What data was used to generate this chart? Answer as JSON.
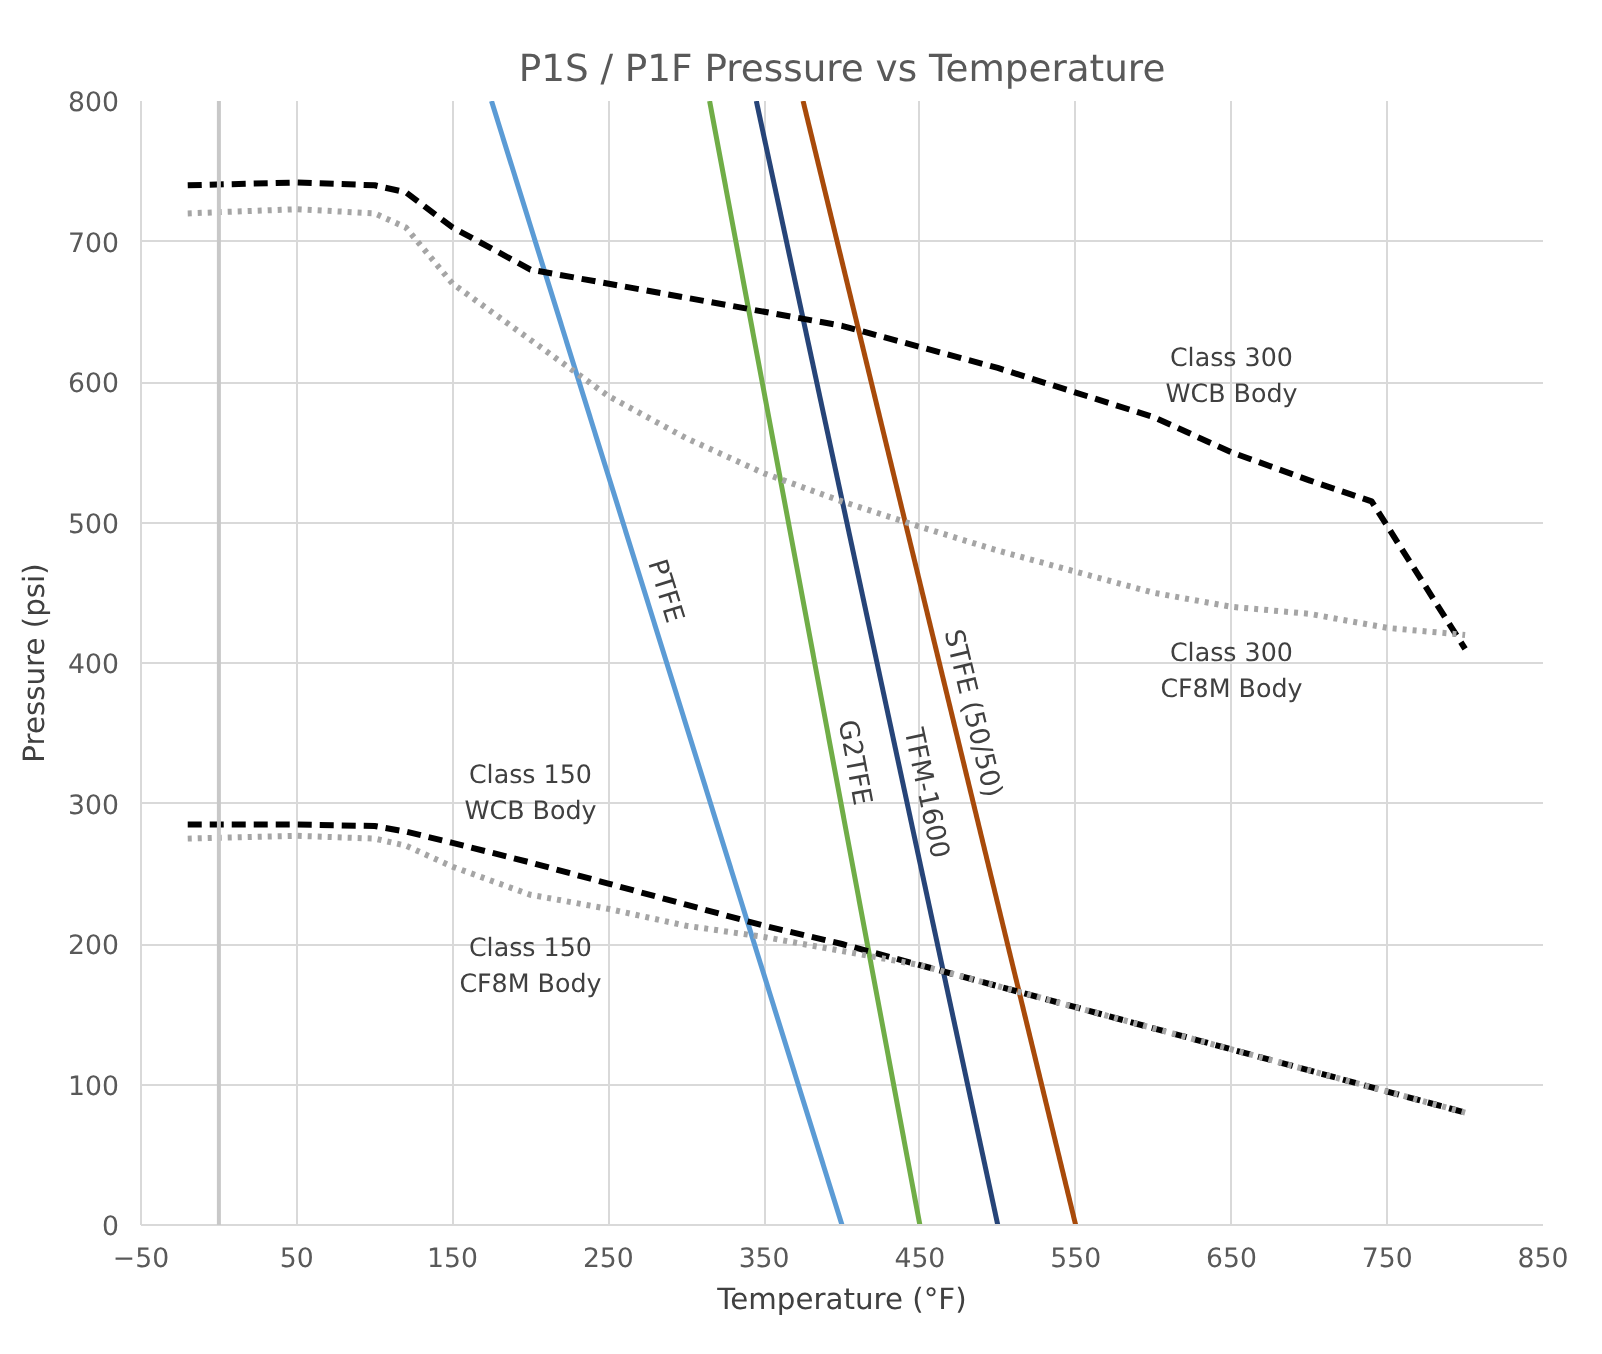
{
  "chart_data": {
    "type": "line",
    "title": "P1S / P1F Pressure vs Temperature",
    "xlabel": "Temperature (°F)",
    "ylabel": "Pressure (psi)",
    "xlim": [
      -50,
      850
    ],
    "xticks": [
      -50,
      50,
      150,
      250,
      350,
      450,
      550,
      650,
      750,
      850
    ],
    "ylim": [
      0,
      800
    ],
    "yticks": [
      0,
      100,
      200,
      300,
      400,
      500,
      600,
      700,
      800
    ],
    "grid": true,
    "ref_lines": [
      {
        "axis": "x",
        "value": 0,
        "color": "#c8c8c8"
      }
    ],
    "series": [
      {
        "name": "PTFE",
        "color": "#5b9bd5",
        "line_style": "solid",
        "x": [
          400,
          175
        ],
        "values": [
          0,
          800
        ]
      },
      {
        "name": "G2TFE",
        "color": "#70ad47",
        "line_style": "solid",
        "x": [
          450,
          315
        ],
        "values": [
          0,
          800
        ]
      },
      {
        "name": "TFM-1600",
        "color": "#264478",
        "line_style": "solid",
        "x": [
          500,
          345
        ],
        "values": [
          0,
          800
        ]
      },
      {
        "name": "STFE (50/50)",
        "color": "#a84a0a",
        "line_style": "solid",
        "x": [
          550,
          375
        ],
        "values": [
          0,
          800
        ]
      },
      {
        "name": "Class 300\nWCB Body",
        "color": "#000000",
        "line_style": "dashed",
        "x": [
          -20,
          50,
          100,
          120,
          150,
          200,
          300,
          400,
          500,
          600,
          650,
          700,
          740,
          800
        ],
        "values": [
          740,
          742,
          740,
          735,
          710,
          680,
          660,
          640,
          610,
          575,
          550,
          530,
          515,
          410
        ]
      },
      {
        "name": "Class 300\nCF8M Body",
        "color": "#a5a5a5",
        "line_style": "dotted",
        "x": [
          -20,
          50,
          100,
          120,
          150,
          200,
          250,
          300,
          350,
          400,
          450,
          500,
          550,
          600,
          650,
          700,
          750,
          800
        ],
        "values": [
          720,
          723,
          720,
          710,
          670,
          630,
          590,
          560,
          535,
          515,
          497,
          480,
          465,
          450,
          440,
          435,
          425,
          420
        ]
      },
      {
        "name": "Class 150\nWCB Body",
        "color": "#000000",
        "line_style": "dashed",
        "x": [
          -20,
          50,
          100,
          120,
          150,
          200,
          250,
          300,
          350,
          400,
          450,
          500,
          550,
          600,
          650,
          700,
          750,
          800
        ],
        "values": [
          285,
          285,
          284,
          280,
          272,
          258,
          243,
          228,
          213,
          200,
          185,
          170,
          155,
          140,
          125,
          110,
          95,
          80
        ]
      },
      {
        "name": "Class 150\nCF8M Body",
        "color": "#a5a5a5",
        "line_style": "dotted",
        "x": [
          -20,
          50,
          100,
          120,
          150,
          200,
          250,
          300,
          350,
          400,
          450,
          500,
          550,
          600,
          650,
          700,
          750,
          800
        ],
        "values": [
          275,
          277,
          275,
          270,
          255,
          235,
          225,
          213,
          205,
          195,
          185,
          170,
          155,
          140,
          125,
          110,
          95,
          80
        ]
      }
    ]
  }
}
